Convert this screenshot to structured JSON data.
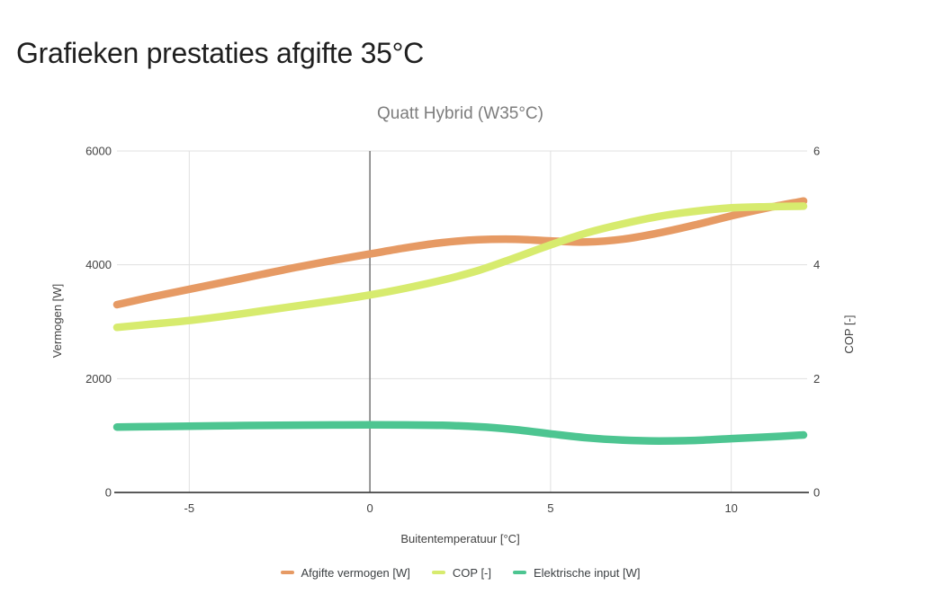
{
  "page": {
    "title": "Grafieken prestaties afgifte 35°C"
  },
  "chart_data": {
    "type": "line",
    "title": "Quatt Hybrid (W35°C)",
    "xlabel": "Buitentemperatuur [°C]",
    "ylabel_left": "Vermogen [W]",
    "ylabel_right": "COP [-]",
    "x_range": [
      -7,
      12
    ],
    "y_left_range": [
      0,
      6000
    ],
    "y_right_range": [
      0,
      6
    ],
    "x_ticks": [
      -5,
      0,
      5,
      10
    ],
    "y_left_ticks": [
      0,
      2000,
      4000,
      6000
    ],
    "y_right_ticks": [
      0,
      2,
      4,
      6
    ],
    "grid": true,
    "legend_position": "bottom",
    "x": [
      -7,
      -6,
      -5,
      -4,
      -3,
      -2,
      -1,
      0,
      1,
      2,
      3,
      4,
      5,
      6,
      7,
      8,
      9,
      10,
      11,
      12
    ],
    "series": [
      {
        "name": "Afgifte vermogen [W]",
        "axis": "left",
        "color": "#E69A64",
        "values": [
          3300,
          3440,
          3570,
          3700,
          3830,
          3960,
          4080,
          4190,
          4300,
          4390,
          4440,
          4450,
          4420,
          4400,
          4450,
          4560,
          4700,
          4860,
          5000,
          5120
        ]
      },
      {
        "name": "COP [-]",
        "axis": "right",
        "color": "#D7EB6E",
        "values": [
          2.9,
          2.96,
          3.02,
          3.1,
          3.19,
          3.28,
          3.37,
          3.47,
          3.59,
          3.73,
          3.9,
          4.12,
          4.35,
          4.56,
          4.72,
          4.85,
          4.94,
          5.0,
          5.02,
          5.03
        ]
      },
      {
        "name": "Elektrische input [W]",
        "axis": "left",
        "color": "#4DC591",
        "values": [
          1150,
          1158,
          1165,
          1172,
          1178,
          1183,
          1186,
          1187,
          1186,
          1180,
          1155,
          1105,
          1030,
          960,
          920,
          905,
          915,
          945,
          975,
          1010
        ]
      }
    ],
    "colors": {
      "grid": "#E0E0E0",
      "zero_line": "#757575",
      "axis_line": "#424242",
      "tick_text": "#424242",
      "title_text": "#7D7D7D"
    }
  }
}
